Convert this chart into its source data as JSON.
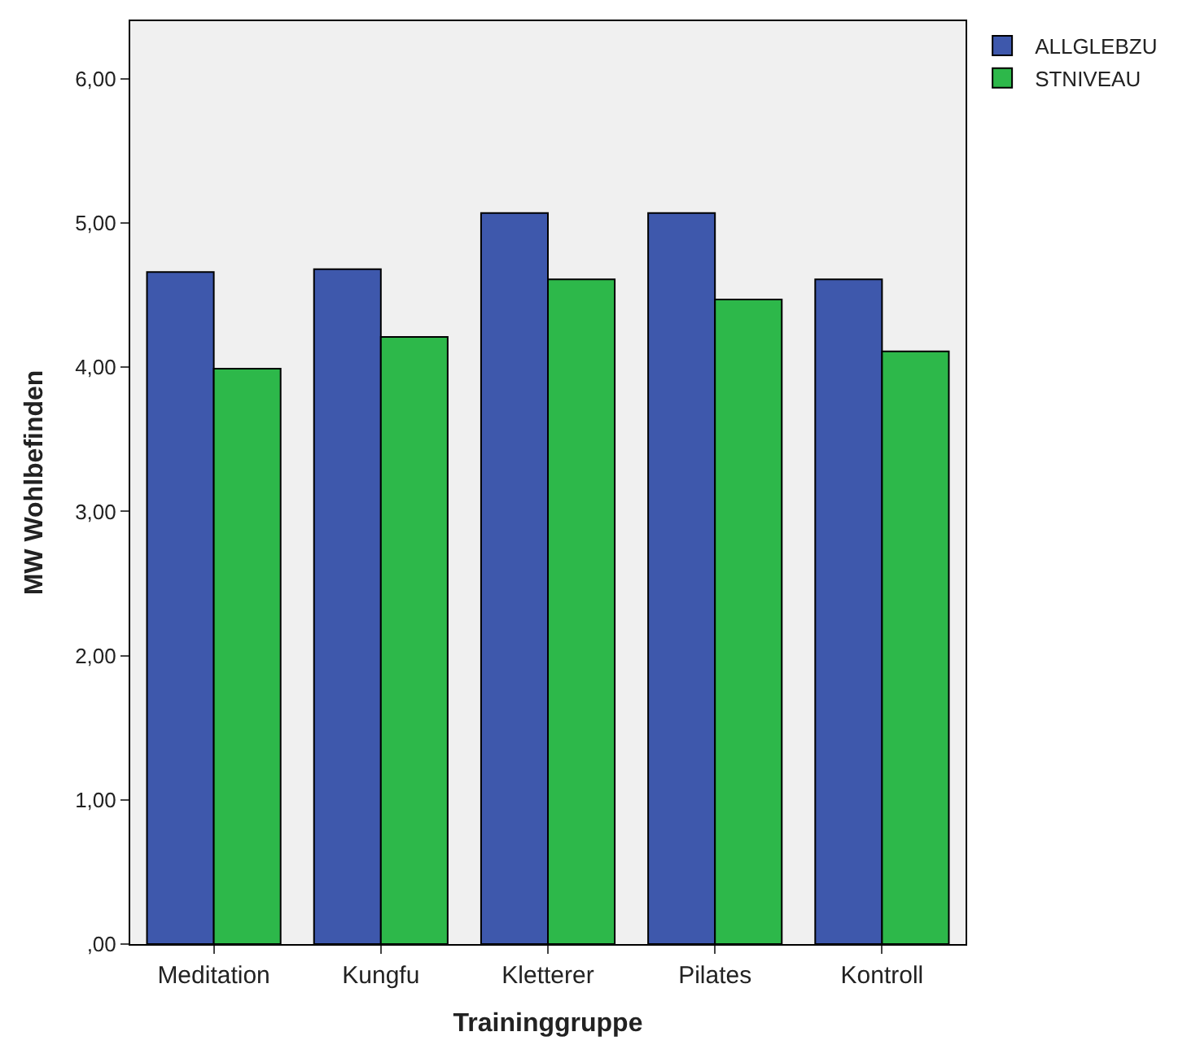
{
  "chart_data": {
    "type": "bar",
    "xlabel": "Traininggruppe",
    "ylabel": "MW Wohlbefinden",
    "categories": [
      "Meditation",
      "Kungfu",
      "Kletterer",
      "Pilates",
      "Kontroll"
    ],
    "series": [
      {
        "name": "ALLGLEBZU",
        "color": "#3e58ac",
        "values": [
          4.66,
          4.68,
          5.07,
          5.07,
          4.61
        ]
      },
      {
        "name": "STNIVEAU",
        "color": "#2db84a",
        "values": [
          3.99,
          4.21,
          4.61,
          4.47,
          4.11
        ]
      }
    ],
    "ylim": [
      0,
      6.4
    ],
    "yticks": [
      {
        "value": 0,
        "label": ",00"
      },
      {
        "value": 1,
        "label": "1,00"
      },
      {
        "value": 2,
        "label": "2,00"
      },
      {
        "value": 3,
        "label": "3,00"
      },
      {
        "value": 4,
        "label": "4,00"
      },
      {
        "value": 5,
        "label": "5,00"
      },
      {
        "value": 6,
        "label": "6,00"
      }
    ],
    "grid": false,
    "legend": "top right"
  }
}
